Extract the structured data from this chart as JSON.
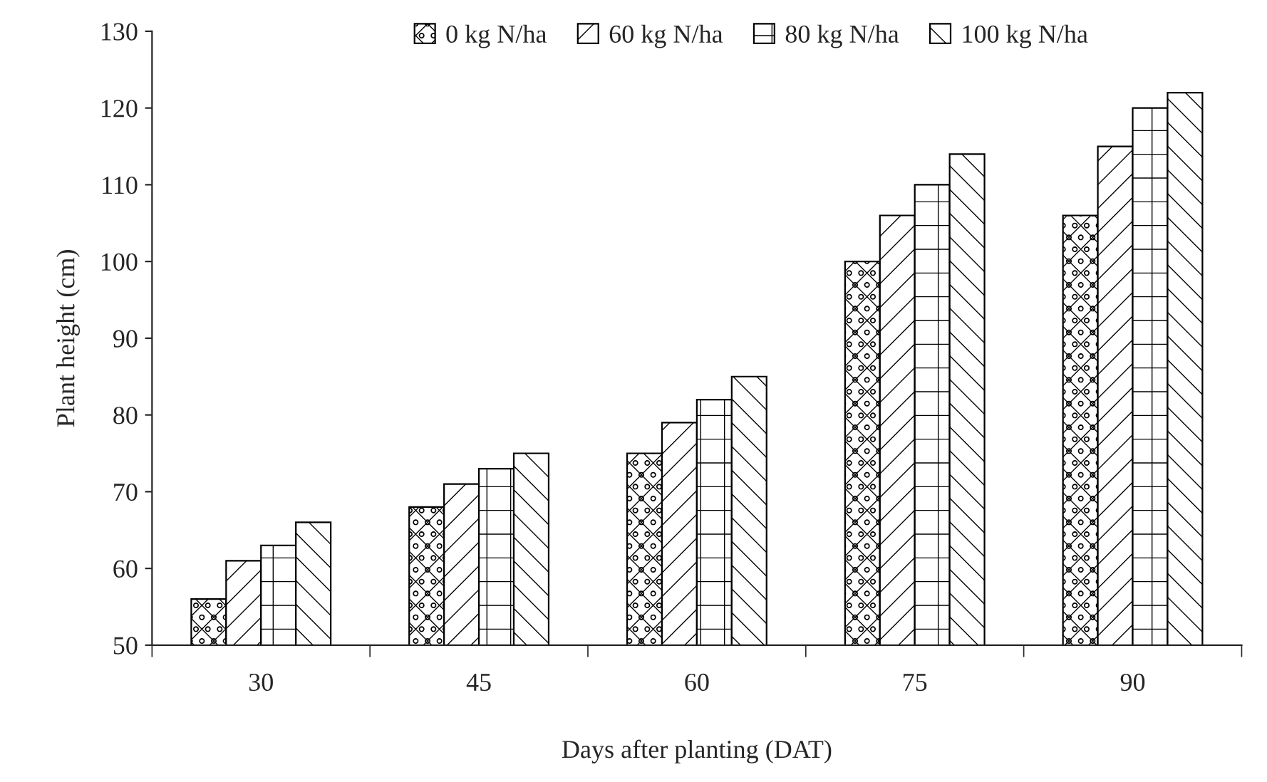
{
  "chart_data": {
    "type": "bar",
    "xlabel": "Days after planting (DAT)",
    "ylabel": "Plant height (cm)",
    "categories": [
      "30",
      "45",
      "60",
      "75",
      "90"
    ],
    "series": [
      {
        "name": "0 kg N/ha",
        "color": "#000000",
        "values": [
          56,
          68,
          75,
          100,
          106
        ]
      },
      {
        "name": "60 kg N/ha",
        "color": "#000000",
        "values": [
          61,
          71,
          79,
          106,
          115
        ]
      },
      {
        "name": "80 kg N/ha",
        "color": "#000000",
        "values": [
          63,
          73,
          82,
          110,
          120
        ]
      },
      {
        "name": "100 kg N/ha",
        "color": "#000000",
        "values": [
          66,
          75,
          85,
          114,
          122
        ]
      }
    ],
    "ylim": [
      50,
      130
    ],
    "yticks": [
      50,
      60,
      70,
      80,
      90,
      100,
      110,
      120,
      130
    ],
    "grid": false,
    "legend": "top"
  }
}
